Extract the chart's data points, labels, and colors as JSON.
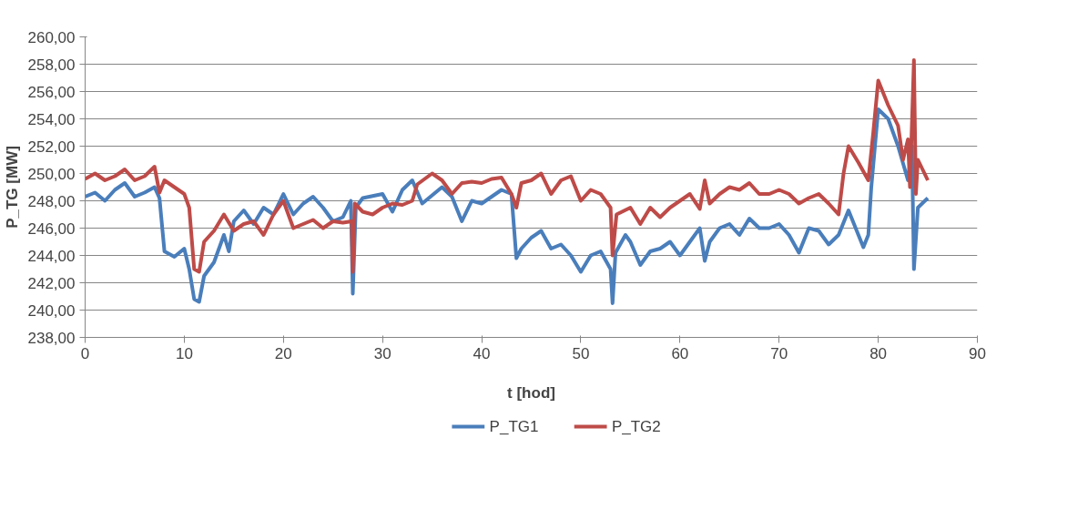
{
  "chart_data": {
    "type": "line",
    "xlabel": "t [hod]",
    "ylabel": "P_TG [MW]",
    "xlim": [
      0,
      90
    ],
    "xticks": [
      0,
      10,
      20,
      30,
      40,
      50,
      60,
      70,
      80,
      90
    ],
    "ylim": [
      238,
      260
    ],
    "yticks": [
      {
        "value": 238,
        "label": "238,00"
      },
      {
        "value": 240,
        "label": "240,00"
      },
      {
        "value": 242,
        "label": "242,00"
      },
      {
        "value": 244,
        "label": "244,00"
      },
      {
        "value": 246,
        "label": "246,00"
      },
      {
        "value": 248,
        "label": "248,00"
      },
      {
        "value": 250,
        "label": "250,00"
      },
      {
        "value": 252,
        "label": "252,00"
      },
      {
        "value": 254,
        "label": "254,00"
      },
      {
        "value": 256,
        "label": "256,00"
      },
      {
        "value": 258,
        "label": "258,00"
      },
      {
        "value": 260,
        "label": "260,00"
      }
    ],
    "grid": "y",
    "legend": "bottom",
    "marker": "none",
    "line_style": "solid",
    "series": [
      {
        "name": "P_TG1",
        "color": "#4a7ebb",
        "x": [
          0,
          1,
          2,
          3,
          4,
          5,
          6,
          7,
          7.5,
          8,
          9,
          10,
          10.5,
          11,
          11.5,
          12,
          13,
          14,
          14.5,
          15,
          16,
          17,
          18,
          19,
          20,
          21,
          22,
          23,
          24,
          25,
          26,
          26.8,
          27,
          27.3,
          28,
          30,
          31,
          32,
          33,
          34,
          36,
          37,
          38,
          39,
          40,
          41,
          42,
          43,
          43.5,
          44,
          45,
          46,
          47,
          48,
          49,
          50,
          51,
          52,
          53,
          53.2,
          53.5,
          54.5,
          55,
          56,
          57,
          58,
          59,
          60,
          61,
          62,
          62.5,
          63,
          64,
          65,
          66,
          67,
          68,
          69,
          70,
          71,
          72,
          73,
          74,
          75,
          76,
          77,
          78,
          78.5,
          79,
          79.3,
          80,
          81,
          82,
          83,
          83.4,
          83.6,
          84,
          85
        ],
        "values": [
          248.3,
          248.6,
          248.0,
          248.8,
          249.3,
          248.3,
          248.6,
          249.0,
          248.2,
          244.3,
          243.9,
          244.5,
          243,
          240.8,
          240.6,
          242.5,
          243.5,
          245.5,
          244.3,
          246.5,
          247.3,
          246.3,
          247.5,
          247.0,
          248.5,
          247,
          247.8,
          248.3,
          247.5,
          246.5,
          246.8,
          248,
          241.2,
          247.5,
          248.2,
          248.5,
          247.2,
          248.8,
          249.5,
          247.8,
          249,
          248.3,
          246.5,
          248,
          247.8,
          248.3,
          248.8,
          248.5,
          243.8,
          244.5,
          245.3,
          245.8,
          244.5,
          244.8,
          244,
          242.8,
          244,
          244.3,
          243,
          240.5,
          244.2,
          245.5,
          245,
          243.3,
          244.3,
          244.5,
          245,
          244,
          245,
          246.0,
          243.6,
          245,
          246.0,
          246.3,
          245.5,
          246.7,
          246,
          246,
          246.3,
          245.5,
          244.2,
          246,
          245.8,
          244.8,
          245.5,
          247.3,
          245.5,
          244.6,
          245.5,
          249,
          254.7,
          254,
          252,
          249.5,
          252,
          243,
          247.5,
          248.2
        ]
      },
      {
        "name": "P_TG2",
        "color": "#be4b48",
        "x": [
          0,
          1,
          2,
          3,
          4,
          5,
          6,
          7,
          7.5,
          8,
          9,
          10,
          10.5,
          11,
          11.5,
          12,
          13,
          14,
          15,
          16,
          17,
          18,
          19,
          20,
          21,
          22,
          23,
          24,
          25,
          26,
          26.9,
          27,
          27.2,
          28,
          29,
          30,
          31,
          32,
          33,
          33.5,
          35,
          36,
          37,
          38,
          39,
          40,
          41,
          42,
          43,
          43.5,
          44,
          45,
          46,
          47,
          48,
          49,
          50,
          51,
          52,
          53,
          53.2,
          53.6,
          55,
          56,
          57,
          58,
          59,
          60,
          61,
          62,
          62.5,
          63,
          64,
          65,
          66,
          67,
          68,
          69,
          70,
          71,
          72,
          73,
          74,
          75,
          76,
          76.5,
          77,
          78,
          79,
          79.5,
          80,
          81,
          82,
          82.5,
          83,
          83.2,
          83.6,
          83.8,
          84,
          85
        ],
        "values": [
          249.6,
          250,
          249.5,
          249.8,
          250.3,
          249.5,
          249.8,
          250.5,
          248.6,
          249.5,
          249,
          248.5,
          247.5,
          243,
          242.8,
          245,
          245.8,
          247,
          245.8,
          246.3,
          246.5,
          245.5,
          247,
          248,
          246,
          246.3,
          246.6,
          246,
          246.5,
          246.4,
          246.5,
          242.8,
          247.8,
          247.2,
          247,
          247.5,
          247.8,
          247.7,
          248,
          249.2,
          250,
          249.5,
          248.5,
          249.3,
          249.4,
          249.3,
          249.6,
          249.7,
          248.5,
          247.5,
          249.3,
          249.5,
          250,
          248.5,
          249.5,
          249.8,
          248,
          248.8,
          248.5,
          247.5,
          244,
          247,
          247.5,
          246.3,
          247.5,
          246.8,
          247.5,
          248,
          248.5,
          247.4,
          249.5,
          247.8,
          248.5,
          249,
          248.8,
          249.3,
          248.5,
          248.5,
          248.8,
          248.5,
          247.8,
          248.2,
          248.5,
          247.8,
          247,
          250,
          252,
          250.8,
          249.5,
          253,
          256.8,
          255,
          253.5,
          251,
          252.5,
          249,
          258.3,
          248.5,
          251,
          249.5
        ]
      }
    ]
  }
}
